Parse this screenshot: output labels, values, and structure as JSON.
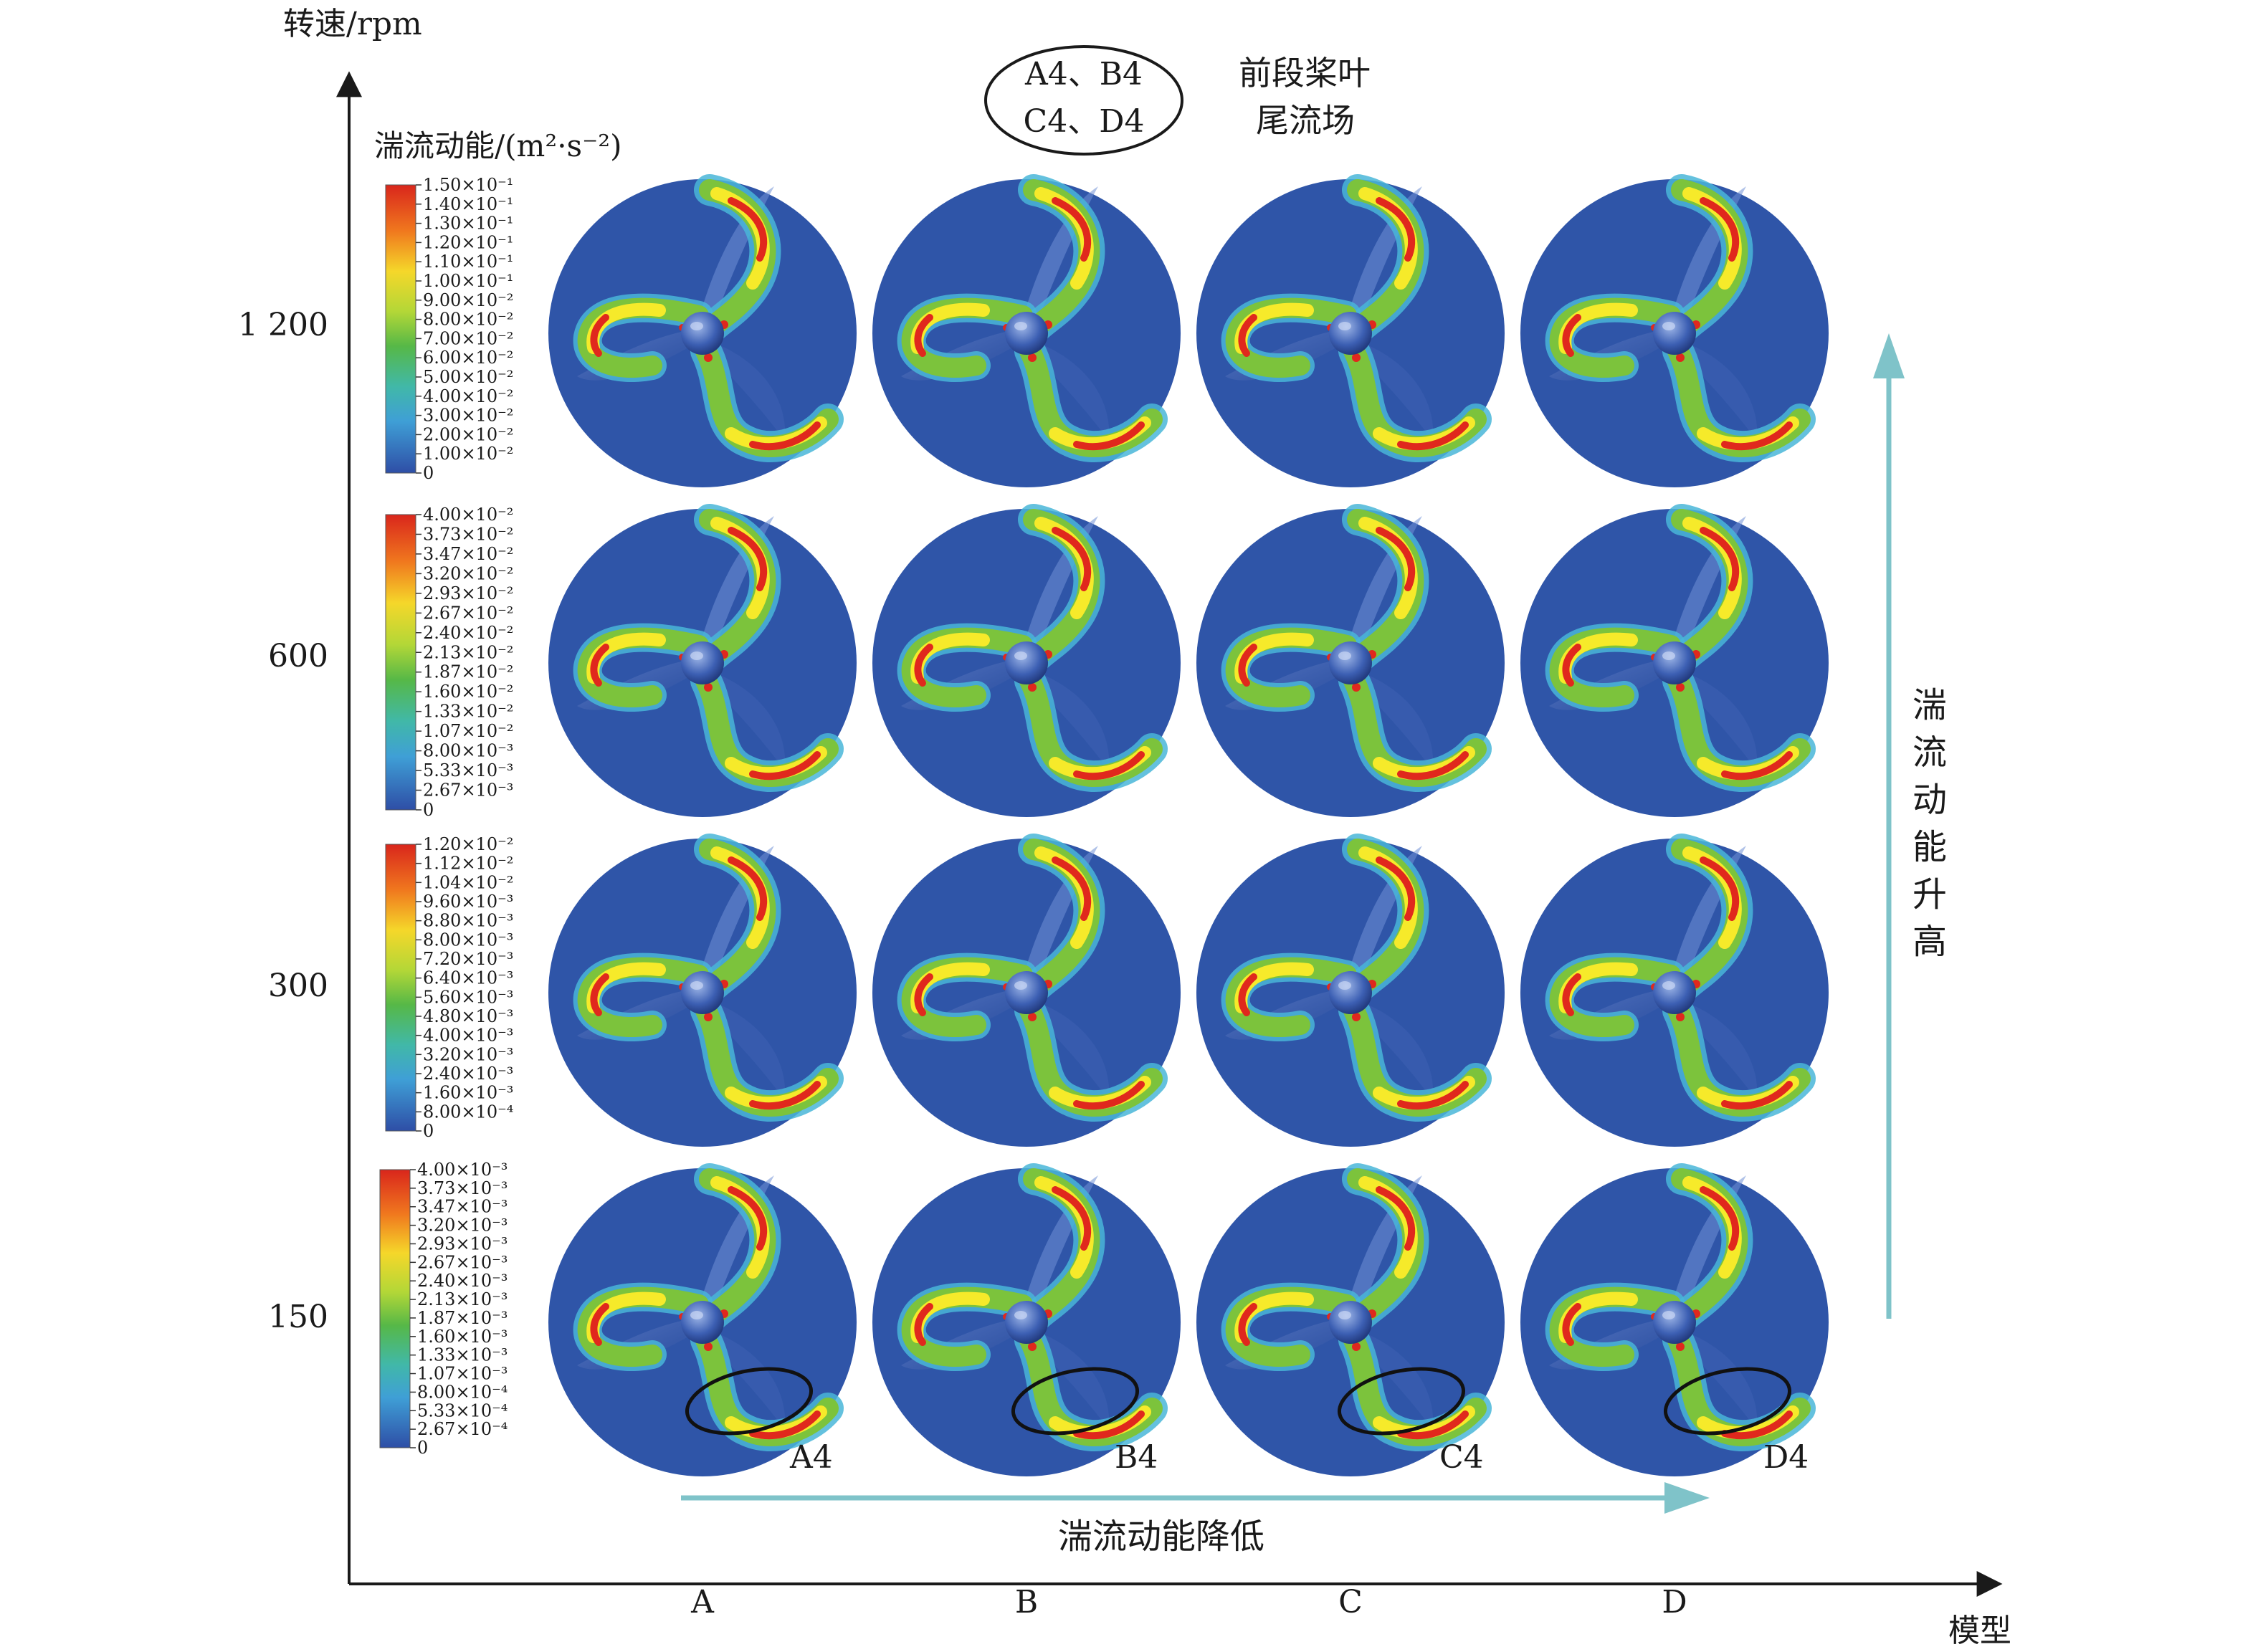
{
  "axes": {
    "y_title": "转速/rpm",
    "x_title": "模型",
    "y_ticks": [
      "1 200",
      "600",
      "300",
      "150"
    ],
    "x_ticks": [
      "A",
      "B",
      "C",
      "D"
    ]
  },
  "header": {
    "oval_line1": "A4、B4",
    "oval_line2": "C4、D4",
    "note_line1": "前段桨叶",
    "note_line2": "尾流场"
  },
  "colorbar_title": "湍流动能/(m²·s⁻²)",
  "colorbars": [
    {
      "labels": [
        "1.50×10⁻¹",
        "1.40×10⁻¹",
        "1.30×10⁻¹",
        "1.20×10⁻¹",
        "1.10×10⁻¹",
        "1.00×10⁻¹",
        "9.00×10⁻²",
        "8.00×10⁻²",
        "7.00×10⁻²",
        "6.00×10⁻²",
        "5.00×10⁻²",
        "4.00×10⁻²",
        "3.00×10⁻²",
        "2.00×10⁻²",
        "1.00×10⁻²",
        "0"
      ]
    },
    {
      "labels": [
        "4.00×10⁻²",
        "3.73×10⁻²",
        "3.47×10⁻²",
        "3.20×10⁻²",
        "2.93×10⁻²",
        "2.67×10⁻²",
        "2.40×10⁻²",
        "2.13×10⁻²",
        "1.87×10⁻²",
        "1.60×10⁻²",
        "1.33×10⁻²",
        "1.07×10⁻²",
        "8.00×10⁻³",
        "5.33×10⁻³",
        "2.67×10⁻³",
        "0"
      ]
    },
    {
      "labels": [
        "1.20×10⁻²",
        "1.12×10⁻²",
        "1.04×10⁻²",
        "9.60×10⁻³",
        "8.80×10⁻³",
        "8.00×10⁻³",
        "7.20×10⁻³",
        "6.40×10⁻³",
        "5.60×10⁻³",
        "4.80×10⁻³",
        "4.00×10⁻³",
        "3.20×10⁻³",
        "2.40×10⁻³",
        "1.60×10⁻³",
        "8.00×10⁻⁴",
        "0"
      ]
    },
    {
      "labels": [
        "4.00×10⁻³",
        "3.73×10⁻³",
        "3.47×10⁻³",
        "3.20×10⁻³",
        "2.93×10⁻³",
        "2.67×10⁻³",
        "2.40×10⁻³",
        "2.13×10⁻³",
        "1.87×10⁻³",
        "1.60×10⁻³",
        "1.33×10⁻³",
        "1.07×10⁻³",
        "8.00×10⁻⁴",
        "5.33×10⁻⁴",
        "2.67×10⁻⁴",
        "0"
      ]
    }
  ],
  "panel_labels": [
    "A4",
    "B4",
    "C4",
    "D4"
  ],
  "horizontal_arrow_label": "湍流动能降低",
  "vertical_arrow_label": [
    "湍",
    "流",
    "动",
    "能",
    "升",
    "高"
  ],
  "colors": {
    "disc": "#2f55a8",
    "arrow": "#7fc3c9",
    "hot": "#e0281d",
    "warm": "#f2a41c",
    "mid": "#f6ea2a",
    "cool": "#7cc33c",
    "cold": "#49b6d8"
  },
  "icons": [
    "propeller-hub-icon"
  ]
}
